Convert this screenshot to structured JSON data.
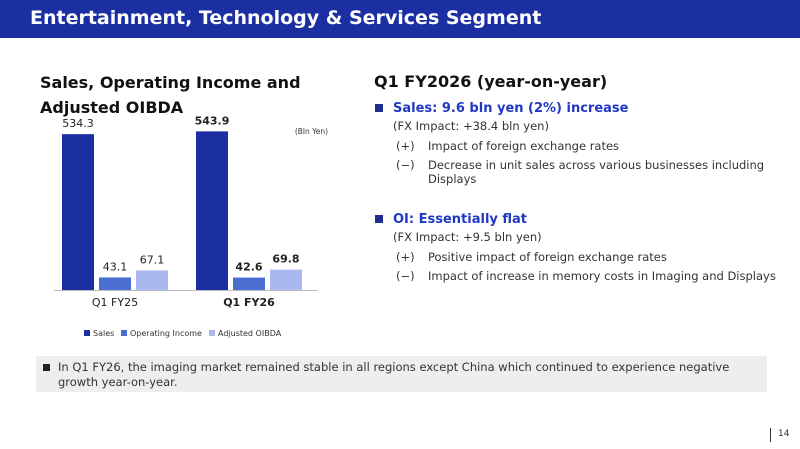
{
  "header": {
    "title": "Entertainment, Technology & Services Segment"
  },
  "left": {
    "chart_title": "Sales, Operating Income and Adjusted OIBDA"
  },
  "chart_data": {
    "type": "bar",
    "unit": "(Bln Yen)",
    "categories": [
      "Q1 FY25",
      "Q1 FY26"
    ],
    "series": [
      {
        "name": "Sales",
        "values": [
          534.3,
          543.9
        ],
        "labels": [
          "534.3",
          "543.9"
        ],
        "color": "#1b2fa3"
      },
      {
        "name": "Operating Income",
        "values": [
          43.1,
          42.6
        ],
        "labels": [
          "43.1",
          "42.6"
        ],
        "color": "#4a6fd1"
      },
      {
        "name": "Adjusted OIBDA",
        "values": [
          67.1,
          69.8
        ],
        "labels": [
          "67.1",
          "69.8"
        ],
        "color": "#a9b9ef"
      }
    ],
    "bold_category_index": 1,
    "legend_position": "bottom"
  },
  "right": {
    "title": "Q1 FY2026 (year-on-year)",
    "sections": [
      {
        "heading": "Sales: 9.6 bln yen (2%) increase",
        "fx": "(FX Impact: +38.4 bln yen)",
        "impacts": [
          {
            "mark": "(+)",
            "text": "Impact of foreign exchange rates"
          },
          {
            "mark": "(−)",
            "text": "Decrease in unit sales across various businesses including Displays"
          }
        ]
      },
      {
        "heading": "OI: Essentially flat",
        "fx": "(FX Impact: +9.5 bln yen)",
        "impacts": [
          {
            "mark": "(+)",
            "text": "Positive impact of foreign exchange rates"
          },
          {
            "mark": "(−)",
            "text": "Impact of increase in memory costs in Imaging and Displays"
          }
        ]
      }
    ]
  },
  "note": {
    "text": "In Q1 FY26, the imaging market remained stable in all regions except China which continued to experience negative growth year-on-year."
  },
  "footer": {
    "page_number": "14"
  }
}
